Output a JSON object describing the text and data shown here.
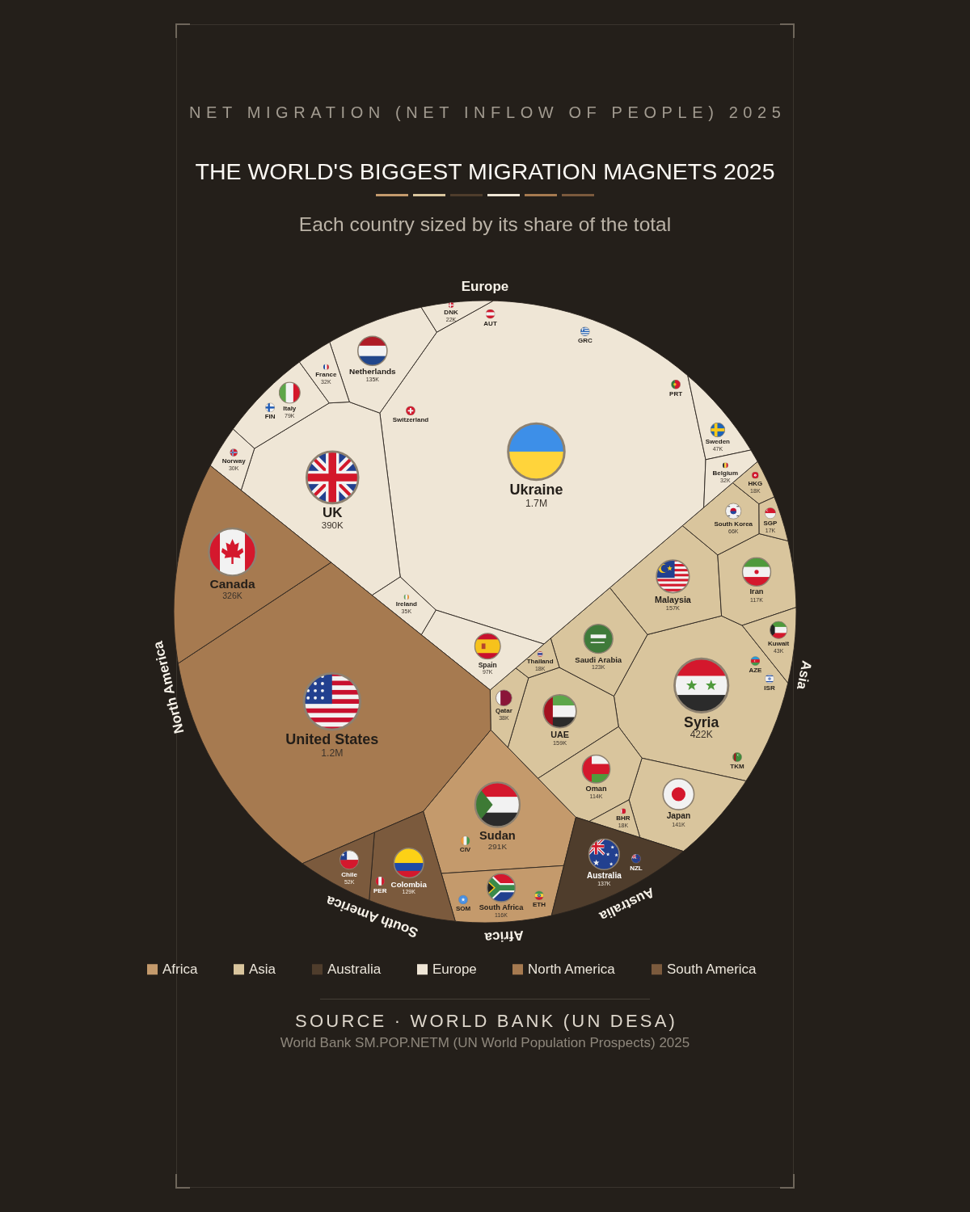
{
  "chart_data": {
    "type": "other",
    "title": "THE WORLD'S BIGGEST MIGRATION MAGNETS 2025",
    "subtitle": "Each country sized by its share of the total",
    "annotations": [
      "NET MIGRATION (NET INFLOW OF PEOPLE) 2025",
      "SOURCE · WORLD BANK (UN DESA)",
      "World Bank SM.POP.NETM (UN World Population Prospects) 2025"
    ],
    "categories": [
      "Ukraine",
      "UK",
      "Netherlands",
      "Spain",
      "Italy",
      "Sweden",
      "Ireland",
      "France",
      "Belgium",
      "Norway",
      "DNK",
      "FIN",
      "Switzerland",
      "AUT",
      "GRC",
      "PRT",
      "Syria",
      "UAE",
      "Malaysia",
      "Japan",
      "Saudi Arabia",
      "Iran",
      "Oman",
      "South Korea",
      "Kuwait",
      "Qatar",
      "HKG",
      "BHR",
      "Thailand",
      "SGP",
      "ISR",
      "AZE",
      "TKM",
      "Australia",
      "NZL",
      "Sudan",
      "South Africa",
      "ETH",
      "SOM",
      "CIV",
      "Colombia",
      "Chile",
      "PER",
      "United States",
      "Canada"
    ],
    "series": [
      {
        "name": "Africa",
        "color": "#c49a6c",
        "values": [
          null,
          null,
          null,
          null,
          null,
          null,
          null,
          null,
          null,
          null,
          null,
          null,
          null,
          null,
          null,
          null,
          null,
          null,
          null,
          null,
          null,
          null,
          null,
          null,
          null,
          null,
          null,
          null,
          null,
          null,
          null,
          null,
          null,
          null,
          null,
          291000,
          116000,
          null,
          null,
          null,
          null,
          null,
          null,
          null,
          null
        ],
        "value_labels": [
          null,
          null,
          null,
          null,
          null,
          null,
          null,
          null,
          null,
          null,
          null,
          null,
          null,
          null,
          null,
          null,
          null,
          null,
          null,
          null,
          null,
          null,
          null,
          null,
          null,
          null,
          null,
          null,
          null,
          null,
          null,
          null,
          null,
          null,
          null,
          "291K",
          "116K",
          null,
          null,
          null,
          null,
          null,
          null,
          null,
          null
        ]
      },
      {
        "name": "Asia",
        "color": "#d9c59d",
        "values": [
          null,
          null,
          null,
          null,
          null,
          null,
          null,
          null,
          null,
          null,
          null,
          null,
          null,
          null,
          null,
          null,
          422000,
          159000,
          157000,
          141000,
          123000,
          117000,
          114000,
          66000,
          43000,
          38000,
          18000,
          18000,
          18000,
          17000,
          null,
          null,
          null,
          null,
          null,
          null,
          null,
          null,
          null,
          null,
          null,
          null,
          null,
          null,
          null
        ],
        "value_labels": [
          null,
          null,
          null,
          null,
          null,
          null,
          null,
          null,
          null,
          null,
          null,
          null,
          null,
          null,
          null,
          null,
          "422K",
          "159K",
          "157K",
          "141K",
          "123K",
          "117K",
          "114K",
          "66K",
          "43K",
          "38K",
          "18K",
          "18K",
          "18K",
          "17K",
          null,
          null,
          null,
          null,
          null,
          null,
          null,
          null,
          null,
          null,
          null,
          null,
          null,
          null,
          null
        ]
      },
      {
        "name": "Australia",
        "color": "#4f3d2c",
        "values": [
          null,
          null,
          null,
          null,
          null,
          null,
          null,
          null,
          null,
          null,
          null,
          null,
          null,
          null,
          null,
          null,
          null,
          null,
          null,
          null,
          null,
          null,
          null,
          null,
          null,
          null,
          null,
          null,
          null,
          null,
          null,
          null,
          null,
          137000,
          null,
          null,
          null,
          null,
          null,
          null,
          null,
          null,
          null,
          null,
          null
        ],
        "value_labels": [
          null,
          null,
          null,
          null,
          null,
          null,
          null,
          null,
          null,
          null,
          null,
          null,
          null,
          null,
          null,
          null,
          null,
          null,
          null,
          null,
          null,
          null,
          null,
          null,
          null,
          null,
          null,
          null,
          null,
          null,
          null,
          null,
          null,
          "137K",
          null,
          null,
          null,
          null,
          null,
          null,
          null,
          null,
          null,
          null,
          null
        ]
      },
      {
        "name": "Europe",
        "color": "#efe6d6",
        "values": [
          1700000,
          390000,
          135000,
          97000,
          79000,
          47000,
          35000,
          32000,
          32000,
          30000,
          22000,
          null,
          null,
          null,
          null,
          null,
          null,
          null,
          null,
          null,
          null,
          null,
          null,
          null,
          null,
          null,
          null,
          null,
          null,
          null,
          null,
          null,
          null,
          null,
          null,
          null,
          null,
          null,
          null,
          null,
          null,
          null,
          null,
          null,
          null
        ],
        "value_labels": [
          "1.7M",
          "390K",
          "135K",
          "97K",
          "79K",
          "47K",
          "35K",
          "32K",
          "32K",
          "30K",
          "22K",
          null,
          null,
          null,
          null,
          null,
          null,
          null,
          null,
          null,
          null,
          null,
          null,
          null,
          null,
          null,
          null,
          null,
          null,
          null,
          null,
          null,
          null,
          null,
          null,
          null,
          null,
          null,
          null,
          null,
          null,
          null,
          null,
          null,
          null
        ]
      },
      {
        "name": "North America",
        "color": "#a67a50",
        "values": [
          null,
          null,
          null,
          null,
          null,
          null,
          null,
          null,
          null,
          null,
          null,
          null,
          null,
          null,
          null,
          null,
          null,
          null,
          null,
          null,
          null,
          null,
          null,
          null,
          null,
          null,
          null,
          null,
          null,
          null,
          null,
          null,
          null,
          null,
          null,
          null,
          null,
          null,
          null,
          null,
          null,
          null,
          null,
          1200000,
          326000
        ],
        "value_labels": [
          null,
          null,
          null,
          null,
          null,
          null,
          null,
          null,
          null,
          null,
          null,
          null,
          null,
          null,
          null,
          null,
          null,
          null,
          null,
          null,
          null,
          null,
          null,
          null,
          null,
          null,
          null,
          null,
          null,
          null,
          null,
          null,
          null,
          null,
          null,
          null,
          null,
          null,
          null,
          null,
          null,
          null,
          null,
          "1.2M",
          "326K"
        ]
      },
      {
        "name": "South America",
        "color": "#7b5a3d",
        "values": [
          null,
          null,
          null,
          null,
          null,
          null,
          null,
          null,
          null,
          null,
          null,
          null,
          null,
          null,
          null,
          null,
          null,
          null,
          null,
          null,
          null,
          null,
          null,
          null,
          null,
          null,
          null,
          null,
          null,
          null,
          null,
          null,
          null,
          null,
          null,
          null,
          null,
          null,
          null,
          null,
          129000,
          52000,
          null,
          null,
          null
        ],
        "value_labels": [
          null,
          null,
          null,
          null,
          null,
          null,
          null,
          null,
          null,
          null,
          null,
          null,
          null,
          null,
          null,
          null,
          null,
          null,
          null,
          null,
          null,
          null,
          null,
          null,
          null,
          null,
          null,
          null,
          null,
          null,
          null,
          null,
          null,
          null,
          null,
          null,
          null,
          null,
          null,
          null,
          "129K",
          "52K",
          null,
          null,
          null
        ]
      }
    ],
    "legend": "bottom"
  }
}
